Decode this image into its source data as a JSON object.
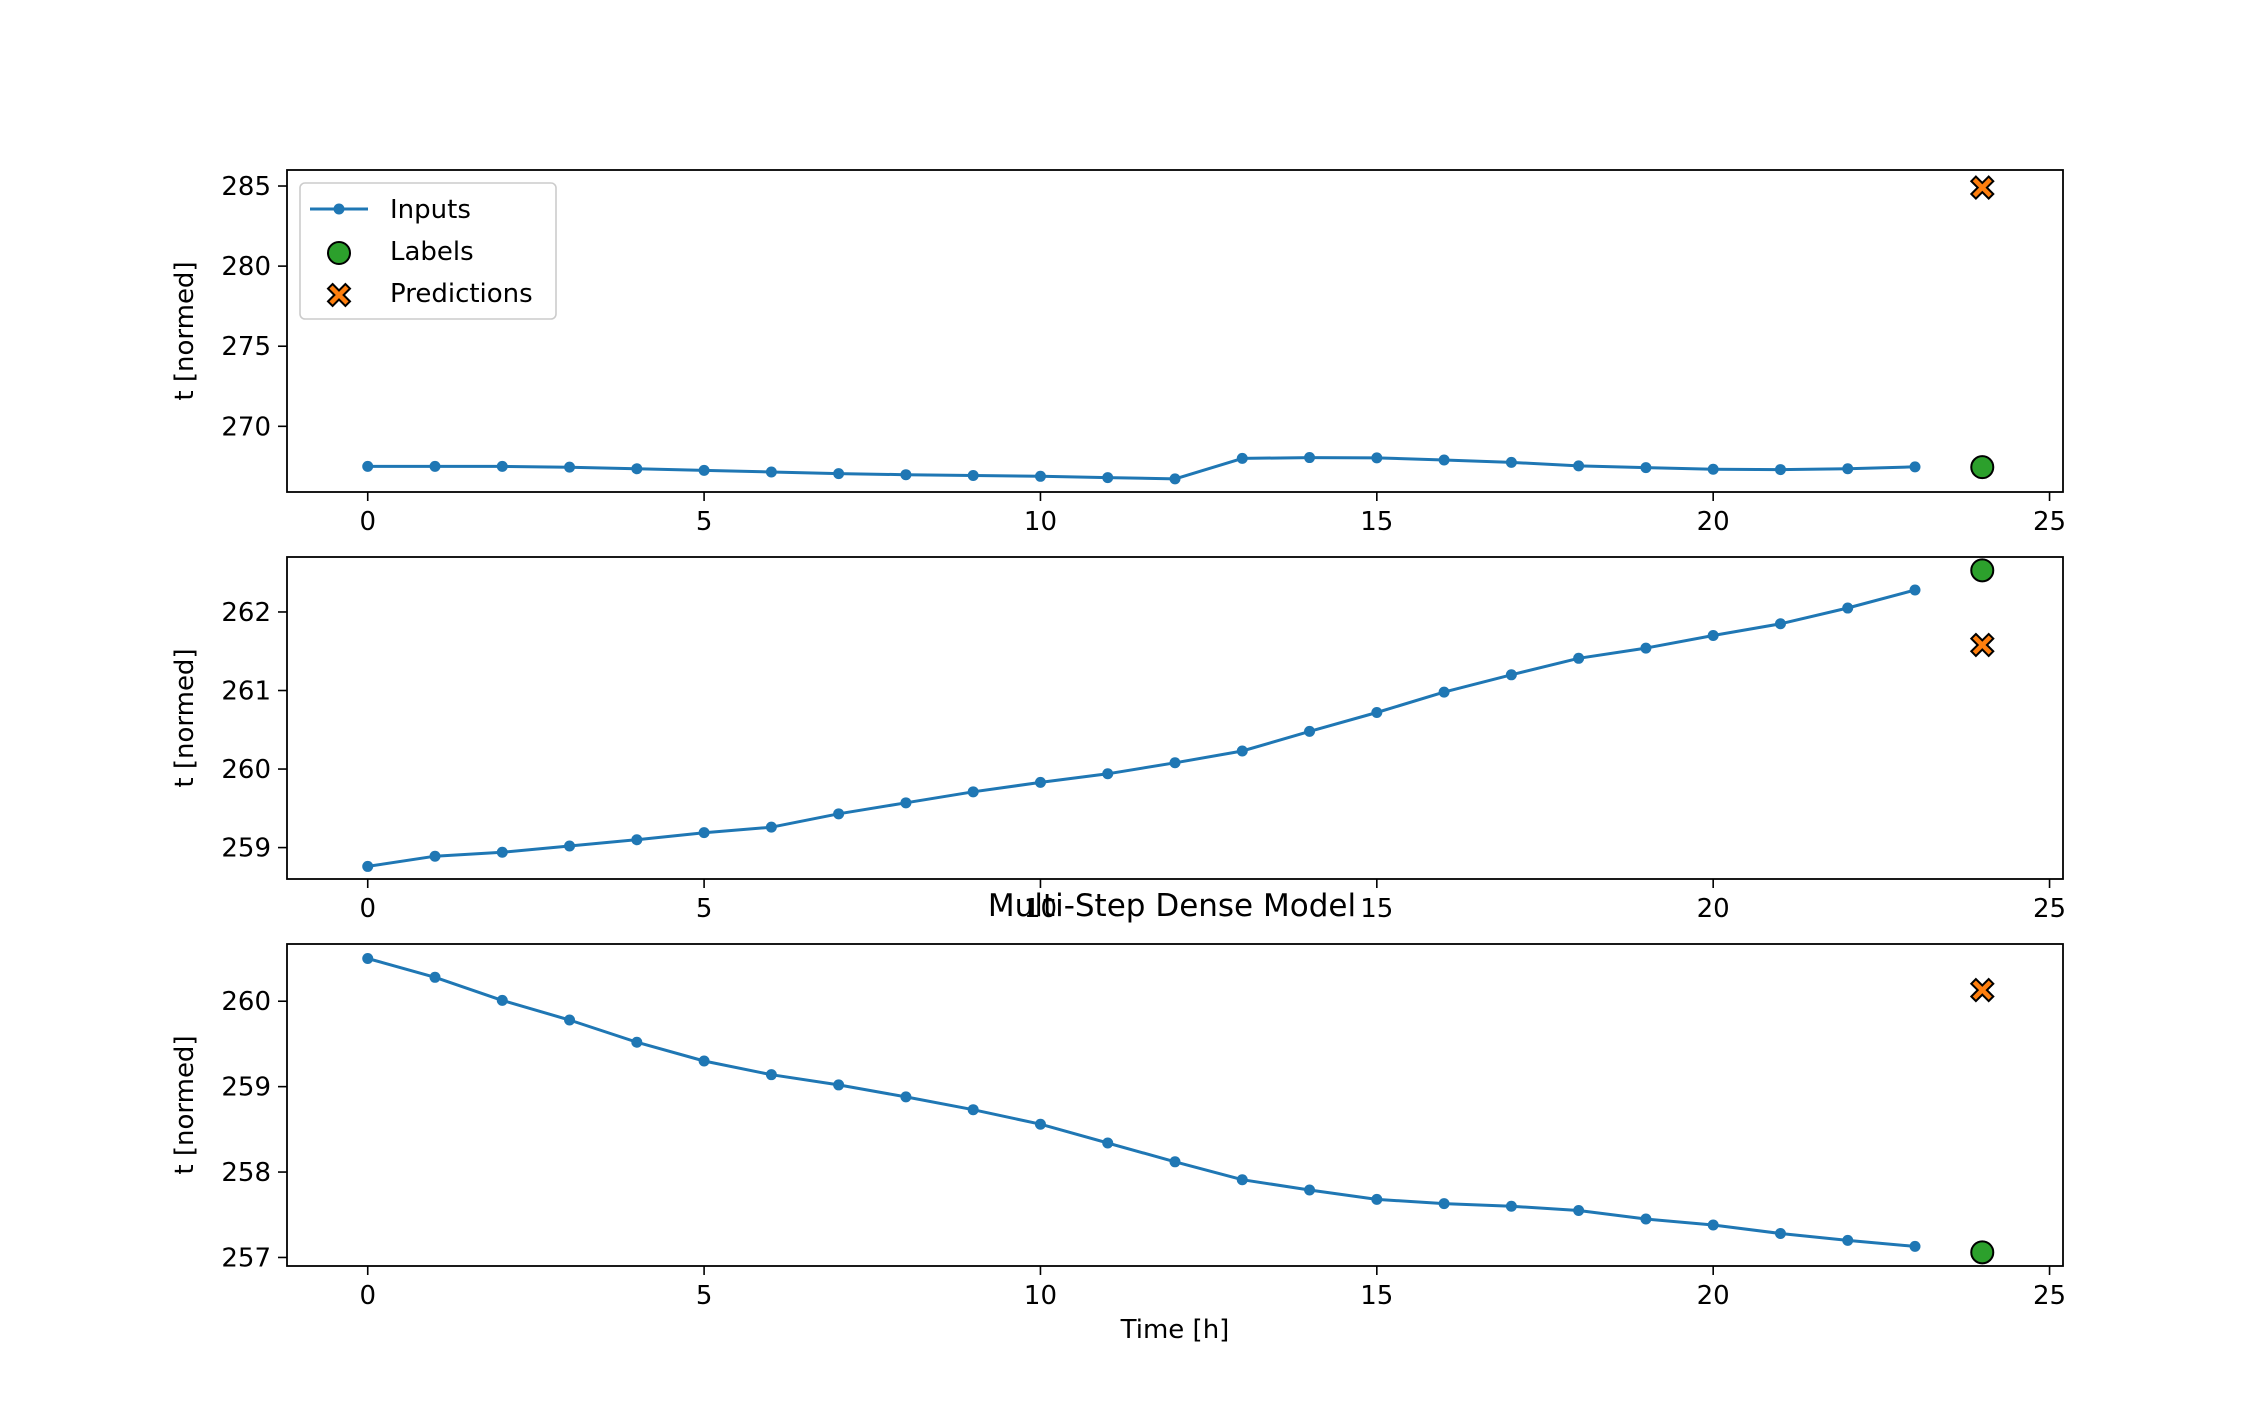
{
  "figure_title": "Multi-Step Dense Model",
  "colors": {
    "inputs": "#1f77b4",
    "labels": "#2ca02c",
    "predictions": "#ff7f0e",
    "edge": "#000000"
  },
  "legend": {
    "placement": "upper-left",
    "entries": [
      "Inputs",
      "Labels",
      "Predictions"
    ]
  },
  "chart_data": [
    {
      "type": "line",
      "xlabel": "",
      "ylabel": "t [normed]",
      "xlim": [
        -1.2,
        25.2
      ],
      "ylim": [
        265.9,
        286.0
      ],
      "xticks": [
        0,
        5,
        10,
        15,
        20,
        25
      ],
      "yticks": [
        270,
        275,
        280,
        285
      ],
      "legend": true,
      "series": [
        {
          "name": "Inputs",
          "x": [
            0,
            1,
            2,
            3,
            4,
            5,
            6,
            7,
            8,
            9,
            10,
            11,
            12,
            13,
            14,
            15,
            16,
            17,
            18,
            19,
            20,
            21,
            22,
            23
          ],
          "values": [
            267.5,
            267.5,
            267.5,
            267.45,
            267.35,
            267.25,
            267.15,
            267.05,
            266.98,
            266.93,
            266.88,
            266.8,
            266.72,
            268.0,
            268.05,
            268.03,
            267.9,
            267.75,
            267.53,
            267.42,
            267.32,
            267.3,
            267.35,
            267.47
          ]
        },
        {
          "name": "Labels",
          "x": [
            24
          ],
          "values": [
            267.45
          ]
        },
        {
          "name": "Predictions",
          "x": [
            24
          ],
          "values": [
            284.9
          ]
        }
      ]
    },
    {
      "type": "line",
      "xlabel": "",
      "ylabel": "t [normed]",
      "xlim": [
        -1.2,
        25.2
      ],
      "ylim": [
        258.6,
        262.7
      ],
      "xticks": [
        0,
        5,
        10,
        15,
        20,
        25
      ],
      "yticks": [
        259,
        260,
        261,
        262
      ],
      "legend": false,
      "series": [
        {
          "name": "Inputs",
          "x": [
            0,
            1,
            2,
            3,
            4,
            5,
            6,
            7,
            8,
            9,
            10,
            11,
            12,
            13,
            14,
            15,
            16,
            17,
            18,
            19,
            20,
            21,
            22,
            23
          ],
          "values": [
            258.76,
            258.89,
            258.94,
            259.02,
            259.1,
            259.19,
            259.26,
            259.43,
            259.57,
            259.71,
            259.83,
            259.94,
            260.08,
            260.23,
            260.48,
            260.72,
            260.98,
            261.2,
            261.41,
            261.54,
            261.7,
            261.85,
            262.05,
            262.28
          ]
        },
        {
          "name": "Labels",
          "x": [
            24
          ],
          "values": [
            262.53
          ]
        },
        {
          "name": "Predictions",
          "x": [
            24
          ],
          "values": [
            261.58
          ]
        }
      ]
    },
    {
      "type": "line",
      "xlabel": "Time [h]",
      "ylabel": "t [normed]",
      "xlim": [
        -1.2,
        25.2
      ],
      "ylim": [
        256.9,
        260.67
      ],
      "xticks": [
        0,
        5,
        10,
        15,
        20,
        25
      ],
      "yticks": [
        257,
        258,
        259,
        260
      ],
      "legend": false,
      "series": [
        {
          "name": "Inputs",
          "x": [
            0,
            1,
            2,
            3,
            4,
            5,
            6,
            7,
            8,
            9,
            10,
            11,
            12,
            13,
            14,
            15,
            16,
            17,
            18,
            19,
            20,
            21,
            22,
            23
          ],
          "values": [
            260.5,
            260.28,
            260.01,
            259.78,
            259.52,
            259.3,
            259.14,
            259.02,
            258.88,
            258.73,
            258.56,
            258.34,
            258.12,
            257.91,
            257.79,
            257.68,
            257.63,
            257.6,
            257.55,
            257.45,
            257.38,
            257.28,
            257.2,
            257.13
          ]
        },
        {
          "name": "Labels",
          "x": [
            24
          ],
          "values": [
            257.06
          ]
        },
        {
          "name": "Predictions",
          "x": [
            24
          ],
          "values": [
            260.13
          ]
        }
      ]
    }
  ]
}
